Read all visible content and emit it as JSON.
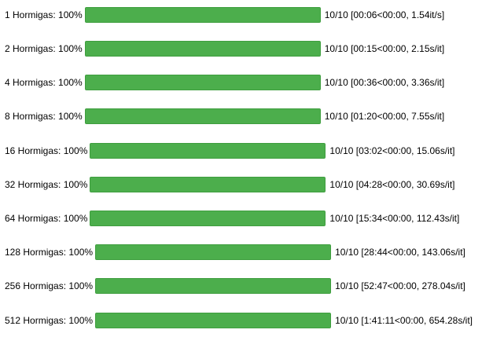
{
  "progress_rows": [
    {
      "label": "1 Hormigas: 100%",
      "stats": "10/10 [00:06<00:00, 1.54it/s]",
      "progress": 1.0
    },
    {
      "label": "2 Hormigas: 100%",
      "stats": "10/10 [00:15<00:00, 2.15s/it]",
      "progress": 1.0
    },
    {
      "label": "4 Hormigas: 100%",
      "stats": "10/10 [00:36<00:00, 3.36s/it]",
      "progress": 1.0
    },
    {
      "label": "8 Hormigas: 100%",
      "stats": "10/10 [01:20<00:00, 7.55s/it]",
      "progress": 1.0
    },
    {
      "label": "16 Hormigas: 100%",
      "stats": "10/10 [03:02<00:00, 15.06s/it]",
      "progress": 1.0
    },
    {
      "label": "32 Hormigas: 100%",
      "stats": "10/10 [04:28<00:00, 30.69s/it]",
      "progress": 1.0
    },
    {
      "label": "64 Hormigas: 100%",
      "stats": "10/10 [15:34<00:00, 112.43s/it]",
      "progress": 1.0
    },
    {
      "label": "128 Hormigas: 100%",
      "stats": "10/10 [28:44<00:00, 143.06s/it]",
      "progress": 1.0
    },
    {
      "label": "256 Hormigas: 100%",
      "stats": "10/10 [52:47<00:00, 278.04s/it]",
      "progress": 1.0
    },
    {
      "label": "512 Hormigas: 100%",
      "stats": "10/10 [1:41:11<00:00, 654.28s/it]",
      "progress": 1.0
    }
  ],
  "colors": {
    "bar_fill": "#4cae4c",
    "bar_border": "#3f9e3f",
    "text": "#000000",
    "background": "#ffffff"
  }
}
